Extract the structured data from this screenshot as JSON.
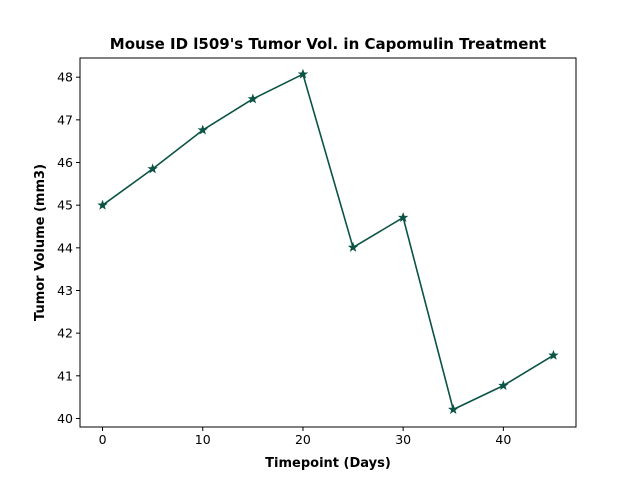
{
  "chart_data": {
    "type": "line",
    "title": "Mouse ID l509's Tumor Vol. in Capomulin Treatment",
    "xlabel": "Timepoint (Days)",
    "ylabel": "Tumor Volume (mm3)",
    "x": [
      0,
      5,
      10,
      15,
      20,
      25,
      30,
      35,
      40,
      45
    ],
    "series": [
      {
        "values": [
          45.0,
          45.85,
          46.76,
          47.49,
          48.07,
          44.01,
          44.71,
          40.21,
          40.77,
          41.48
        ],
        "color": "#0b5345",
        "marker": "star"
      }
    ],
    "xlim": [
      -2.25,
      47.25
    ],
    "ylim": [
      39.8,
      48.45
    ],
    "xticks": [
      0,
      10,
      20,
      30,
      40
    ],
    "yticks": [
      40,
      41,
      42,
      43,
      44,
      45,
      46,
      47,
      48
    ],
    "grid": false,
    "legend": "none"
  }
}
